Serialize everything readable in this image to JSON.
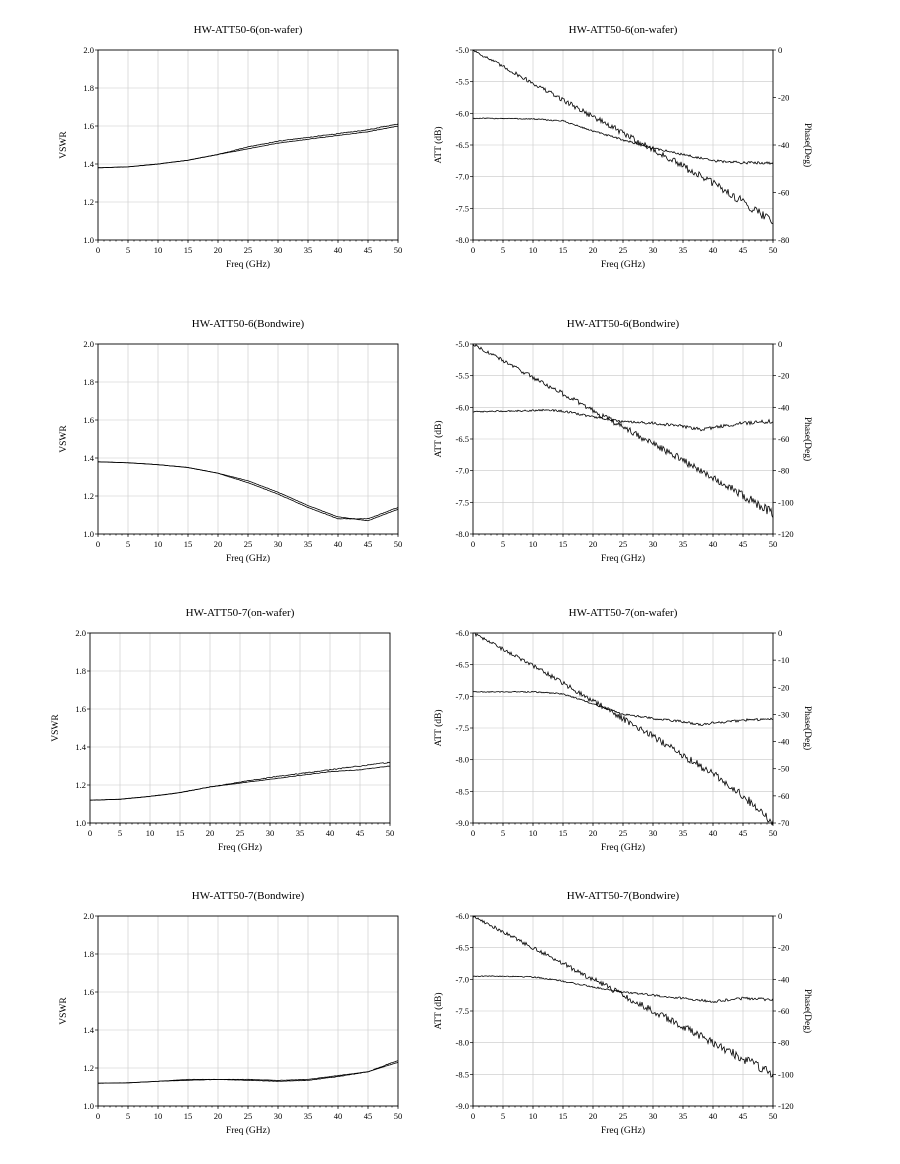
{
  "chart_data": [
    {
      "id": "p1",
      "type": "line",
      "title": "HW-ATT50-6(on-wafer)",
      "xlabel": "Freq (GHz)",
      "ylabel": "VSWR",
      "xlim": [
        0,
        50
      ],
      "ylim": [
        1.0,
        2.0
      ],
      "xticks": [
        0,
        5,
        10,
        15,
        20,
        25,
        30,
        35,
        40,
        45,
        50
      ],
      "yticks": [
        1.0,
        1.2,
        1.4,
        1.6,
        1.8,
        2.0
      ],
      "ytick_decimals": 1,
      "grid": true,
      "series": [
        {
          "axis": "left",
          "noise": 0.003,
          "x": [
            0,
            5,
            10,
            15,
            20,
            25,
            30,
            35,
            40,
            45,
            50
          ],
          "y": [
            1.38,
            1.385,
            1.4,
            1.42,
            1.45,
            1.48,
            1.51,
            1.53,
            1.55,
            1.57,
            1.6
          ]
        },
        {
          "axis": "left",
          "noise": 0.005,
          "x": [
            0,
            5,
            10,
            15,
            20,
            25,
            30,
            35,
            40,
            45,
            50
          ],
          "y": [
            1.38,
            1.385,
            1.4,
            1.42,
            1.45,
            1.49,
            1.52,
            1.54,
            1.56,
            1.58,
            1.61
          ]
        }
      ]
    },
    {
      "id": "p2",
      "type": "line",
      "title": "HW-ATT50-6(on-wafer)",
      "xlabel": "Freq (GHz)",
      "ylabel": "ATT (dB)",
      "y2label": "Phase(Deg)",
      "xlim": [
        0,
        50
      ],
      "ylim": [
        -8.0,
        -5.0
      ],
      "y2lim": [
        -80,
        0
      ],
      "xticks": [
        0,
        5,
        10,
        15,
        20,
        25,
        30,
        35,
        40,
        45,
        50
      ],
      "yticks": [
        -8.0,
        -7.5,
        -7.0,
        -6.5,
        -6.0,
        -5.5,
        -5.0
      ],
      "ytick_decimals": 1,
      "y2ticks": [
        -80,
        -60,
        -40,
        -20,
        0
      ],
      "grid": true,
      "series": [
        {
          "axis": "left",
          "noise": 0.015,
          "x": [
            0,
            5,
            10,
            15,
            20,
            25,
            30,
            35,
            40,
            45,
            50
          ],
          "y": [
            -6.08,
            -6.08,
            -6.09,
            -6.12,
            -6.28,
            -6.42,
            -6.55,
            -6.65,
            -6.75,
            -6.78,
            -6.78
          ]
        },
        {
          "axis": "right",
          "noise": 0.05,
          "x": [
            0,
            10,
            20,
            30,
            40,
            50
          ],
          "y": [
            0,
            -14,
            -28,
            -42,
            -56,
            -72
          ]
        }
      ]
    },
    {
      "id": "p3",
      "type": "line",
      "title": "HW-ATT50-6(Bondwire)",
      "xlabel": "Freq (GHz)",
      "ylabel": "VSWR",
      "xlim": [
        0,
        50
      ],
      "ylim": [
        1.0,
        2.0
      ],
      "xticks": [
        0,
        5,
        10,
        15,
        20,
        25,
        30,
        35,
        40,
        45,
        50
      ],
      "yticks": [
        1.0,
        1.2,
        1.4,
        1.6,
        1.8,
        2.0
      ],
      "ytick_decimals": 1,
      "grid": true,
      "series": [
        {
          "axis": "left",
          "noise": 0.002,
          "x": [
            0,
            5,
            10,
            15,
            20,
            25,
            30,
            35,
            40,
            45,
            50
          ],
          "y": [
            1.38,
            1.375,
            1.365,
            1.35,
            1.32,
            1.28,
            1.22,
            1.15,
            1.09,
            1.07,
            1.13
          ]
        },
        {
          "axis": "left",
          "noise": 0.003,
          "x": [
            0,
            5,
            10,
            15,
            20,
            25,
            30,
            35,
            40,
            45,
            50
          ],
          "y": [
            1.38,
            1.375,
            1.365,
            1.35,
            1.32,
            1.27,
            1.21,
            1.14,
            1.08,
            1.08,
            1.14
          ]
        }
      ]
    },
    {
      "id": "p4",
      "type": "line",
      "title": "HW-ATT50-6(Bondwire)",
      "xlabel": "Freq (GHz)",
      "ylabel": "ATT (dB)",
      "y2label": "Phase(Deg)",
      "xlim": [
        0,
        50
      ],
      "ylim": [
        -8.0,
        -5.0
      ],
      "y2lim": [
        -120,
        0
      ],
      "xticks": [
        0,
        5,
        10,
        15,
        20,
        25,
        30,
        35,
        40,
        45,
        50
      ],
      "yticks": [
        -8.0,
        -7.5,
        -7.0,
        -6.5,
        -6.0,
        -5.5,
        -5.0
      ],
      "ytick_decimals": 1,
      "y2ticks": [
        -120,
        -100,
        -80,
        -60,
        -40,
        -20,
        0
      ],
      "grid": true,
      "series": [
        {
          "axis": "left",
          "noise": 0.02,
          "x": [
            0,
            5,
            10,
            12,
            15,
            20,
            25,
            30,
            35,
            38,
            40,
            45,
            50
          ],
          "y": [
            -6.07,
            -6.06,
            -6.05,
            -6.04,
            -6.06,
            -6.15,
            -6.23,
            -6.25,
            -6.3,
            -6.35,
            -6.32,
            -6.25,
            -6.22
          ]
        },
        {
          "axis": "right",
          "noise": 0.05,
          "x": [
            0,
            10,
            20,
            30,
            40,
            50
          ],
          "y": [
            0,
            -21,
            -42,
            -63,
            -84,
            -107
          ]
        }
      ]
    },
    {
      "id": "p5",
      "type": "line",
      "title": "HW-ATT50-7(on-wafer)",
      "xlabel": "Freq (GHz)",
      "ylabel": "VSWR",
      "xlim": [
        0,
        50
      ],
      "ylim": [
        1.0,
        2.0
      ],
      "xticks": [
        0,
        5,
        10,
        15,
        20,
        25,
        30,
        35,
        40,
        45,
        50
      ],
      "yticks": [
        1.0,
        1.2,
        1.4,
        1.6,
        1.8,
        2.0
      ],
      "ytick_decimals": 1,
      "grid": true,
      "series": [
        {
          "axis": "left",
          "noise": 0.003,
          "x": [
            0,
            5,
            10,
            15,
            20,
            25,
            30,
            35,
            40,
            45,
            50
          ],
          "y": [
            1.12,
            1.125,
            1.14,
            1.16,
            1.19,
            1.21,
            1.23,
            1.25,
            1.27,
            1.28,
            1.3
          ]
        },
        {
          "axis": "left",
          "noise": 0.006,
          "x": [
            0,
            5,
            10,
            15,
            20,
            25,
            30,
            35,
            40,
            45,
            50
          ],
          "y": [
            1.12,
            1.125,
            1.14,
            1.16,
            1.19,
            1.215,
            1.24,
            1.26,
            1.28,
            1.3,
            1.32
          ]
        }
      ]
    },
    {
      "id": "p6",
      "type": "line",
      "title": "HW-ATT50-7(on-wafer)",
      "xlabel": "Freq (GHz)",
      "ylabel": "ATT (dB)",
      "y2label": "Phase(Deg)",
      "xlim": [
        0,
        50
      ],
      "ylim": [
        -9.0,
        -6.0
      ],
      "y2lim": [
        -70,
        0
      ],
      "xticks": [
        0,
        5,
        10,
        15,
        20,
        25,
        30,
        35,
        40,
        45,
        50
      ],
      "yticks": [
        -9.0,
        -8.5,
        -8.0,
        -7.5,
        -7.0,
        -6.5,
        -6.0
      ],
      "ytick_decimals": 1,
      "y2ticks": [
        -70,
        -60,
        -50,
        -40,
        -30,
        -20,
        -10,
        0
      ],
      "grid": true,
      "series": [
        {
          "axis": "left",
          "noise": 0.015,
          "x": [
            0,
            5,
            10,
            15,
            20,
            25,
            30,
            35,
            38,
            40,
            45,
            50
          ],
          "y": [
            -6.93,
            -6.93,
            -6.93,
            -6.96,
            -7.12,
            -7.28,
            -7.35,
            -7.4,
            -7.45,
            -7.42,
            -7.38,
            -7.35
          ]
        },
        {
          "axis": "right",
          "noise": 0.05,
          "x": [
            0,
            10,
            20,
            30,
            40,
            45,
            50
          ],
          "y": [
            0,
            -12,
            -25,
            -38,
            -52,
            -60,
            -70
          ]
        }
      ]
    },
    {
      "id": "p7",
      "type": "line",
      "title": "HW-ATT50-7(Bondwire)",
      "xlabel": "Freq (GHz)",
      "ylabel": "VSWR",
      "xlim": [
        0,
        50
      ],
      "ylim": [
        1.0,
        2.0
      ],
      "xticks": [
        0,
        5,
        10,
        15,
        20,
        25,
        30,
        35,
        40,
        45,
        50
      ],
      "yticks": [
        1.0,
        1.2,
        1.4,
        1.6,
        1.8,
        2.0
      ],
      "ytick_decimals": 1,
      "grid": true,
      "series": [
        {
          "axis": "left",
          "noise": 0.002,
          "x": [
            0,
            5,
            10,
            15,
            20,
            25,
            30,
            35,
            40,
            45,
            50
          ],
          "y": [
            1.12,
            1.122,
            1.13,
            1.14,
            1.14,
            1.14,
            1.135,
            1.14,
            1.16,
            1.18,
            1.23
          ]
        },
        {
          "axis": "left",
          "noise": 0.003,
          "x": [
            0,
            5,
            10,
            15,
            20,
            25,
            30,
            35,
            40,
            45,
            50
          ],
          "y": [
            1.12,
            1.122,
            1.13,
            1.135,
            1.14,
            1.135,
            1.13,
            1.135,
            1.155,
            1.18,
            1.24
          ]
        }
      ]
    },
    {
      "id": "p8",
      "type": "line",
      "title": "HW-ATT50-7(Bondwire)",
      "xlabel": "Freq (GHz)",
      "ylabel": "ATT (dB)",
      "y2label": "Phase(Deg)",
      "xlim": [
        0,
        50
      ],
      "ylim": [
        -9.0,
        -6.0
      ],
      "y2lim": [
        -120,
        0
      ],
      "xticks": [
        0,
        5,
        10,
        15,
        20,
        25,
        30,
        35,
        40,
        45,
        50
      ],
      "yticks": [
        -9.0,
        -8.5,
        -8.0,
        -7.5,
        -7.0,
        -6.5,
        -6.0
      ],
      "ytick_decimals": 1,
      "y2ticks": [
        -120,
        -100,
        -80,
        -60,
        -40,
        -20,
        0
      ],
      "grid": true,
      "series": [
        {
          "axis": "left",
          "noise": 0.015,
          "x": [
            0,
            5,
            10,
            15,
            20,
            25,
            30,
            35,
            40,
            45,
            50
          ],
          "y": [
            -6.95,
            -6.95,
            -6.96,
            -7.03,
            -7.12,
            -7.2,
            -7.25,
            -7.3,
            -7.35,
            -7.3,
            -7.32
          ]
        },
        {
          "axis": "right",
          "noise": 0.05,
          "x": [
            0,
            10,
            20,
            30,
            40,
            50
          ],
          "y": [
            0,
            -20,
            -40,
            -60,
            -80,
            -100
          ]
        }
      ]
    }
  ]
}
